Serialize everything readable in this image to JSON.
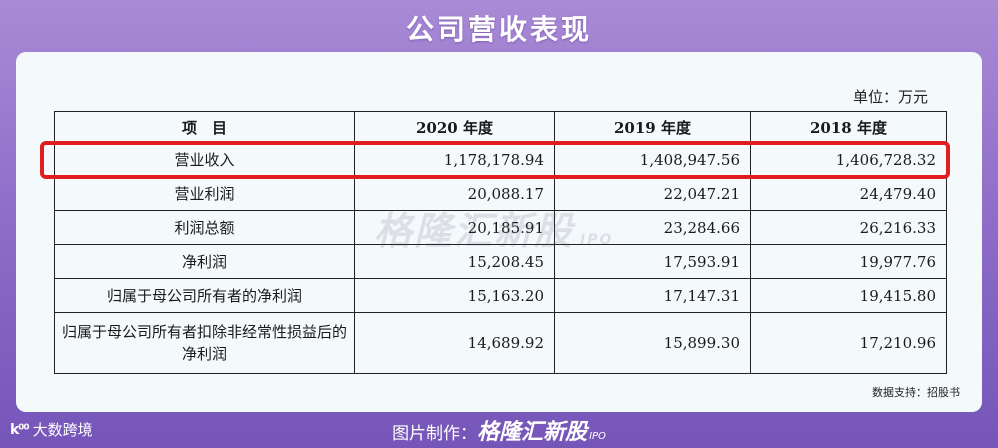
{
  "header": {
    "title": "公司营收表现"
  },
  "table": {
    "unit": "单位：万元",
    "headers": [
      "项　目",
      "2020 年度",
      "2019 年度",
      "2018 年度"
    ],
    "rows": [
      {
        "item": "营业收入",
        "y2020": "1,178,178.94",
        "y2019": "1,408,947.56",
        "y2018": "1,406,728.32"
      },
      {
        "item": "营业利润",
        "y2020": "20,088.17",
        "y2019": "22,047.21",
        "y2018": "24,479.40"
      },
      {
        "item": "利润总额",
        "y2020": "20,185.91",
        "y2019": "23,284.66",
        "y2018": "26,216.33"
      },
      {
        "item": "净利润",
        "y2020": "15,208.45",
        "y2019": "17,593.91",
        "y2018": "19,977.76"
      },
      {
        "item": "归属于母公司所有者的净利润",
        "y2020": "15,163.20",
        "y2019": "17,147.31",
        "y2018": "19,415.80"
      },
      {
        "item": "归属于母公司所有者扣除非经常性损益后的净利润",
        "y2020": "14,689.92",
        "y2019": "15,899.30",
        "y2018": "17,210.96"
      }
    ],
    "highlight_color": "#e11d1d"
  },
  "watermark": {
    "text": "格隆汇新股",
    "ipo": "IPO"
  },
  "source": "数据支持：招股书",
  "footer": {
    "left_logo": "大数跨境",
    "credit_label": "图片制作：",
    "brand": "格隆汇新股",
    "brand_ipo": "IPO"
  }
}
